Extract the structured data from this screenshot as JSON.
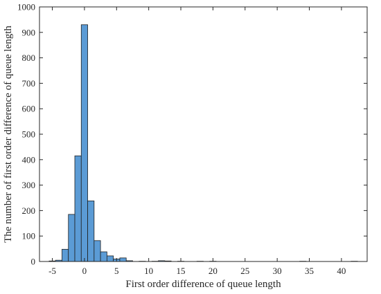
{
  "chart_data": {
    "type": "bar",
    "title": "",
    "xlabel": "First order difference of queue length",
    "ylabel": "The number of first order difference of queue length",
    "xlim": [
      -7,
      44
    ],
    "ylim": [
      0,
      1000
    ],
    "xticks": [
      -5,
      0,
      5,
      10,
      15,
      20,
      25,
      30,
      35,
      40
    ],
    "yticks": [
      0,
      100,
      200,
      300,
      400,
      500,
      600,
      700,
      800,
      900,
      1000
    ],
    "grid": false,
    "bin_width": 1,
    "bars": [
      {
        "x": -5,
        "value": 2
      },
      {
        "x": -4,
        "value": 5
      },
      {
        "x": -3,
        "value": 48
      },
      {
        "x": -2,
        "value": 185
      },
      {
        "x": -1,
        "value": 415
      },
      {
        "x": 0,
        "value": 930
      },
      {
        "x": 1,
        "value": 238
      },
      {
        "x": 2,
        "value": 82
      },
      {
        "x": 3,
        "value": 38
      },
      {
        "x": 4,
        "value": 22
      },
      {
        "x": 5,
        "value": 10
      },
      {
        "x": 6,
        "value": 14
      },
      {
        "x": 7,
        "value": 3
      },
      {
        "x": 9,
        "value": 1
      },
      {
        "x": 11,
        "value": 1
      },
      {
        "x": 12,
        "value": 3
      },
      {
        "x": 13,
        "value": 2
      },
      {
        "x": 15,
        "value": 1
      },
      {
        "x": 18,
        "value": 1
      },
      {
        "x": 20,
        "value": 1
      },
      {
        "x": 34,
        "value": 1
      },
      {
        "x": 42,
        "value": 1
      }
    ],
    "bar_color": "#5b9bd5",
    "bar_edge_color": "#1f1f1f"
  }
}
